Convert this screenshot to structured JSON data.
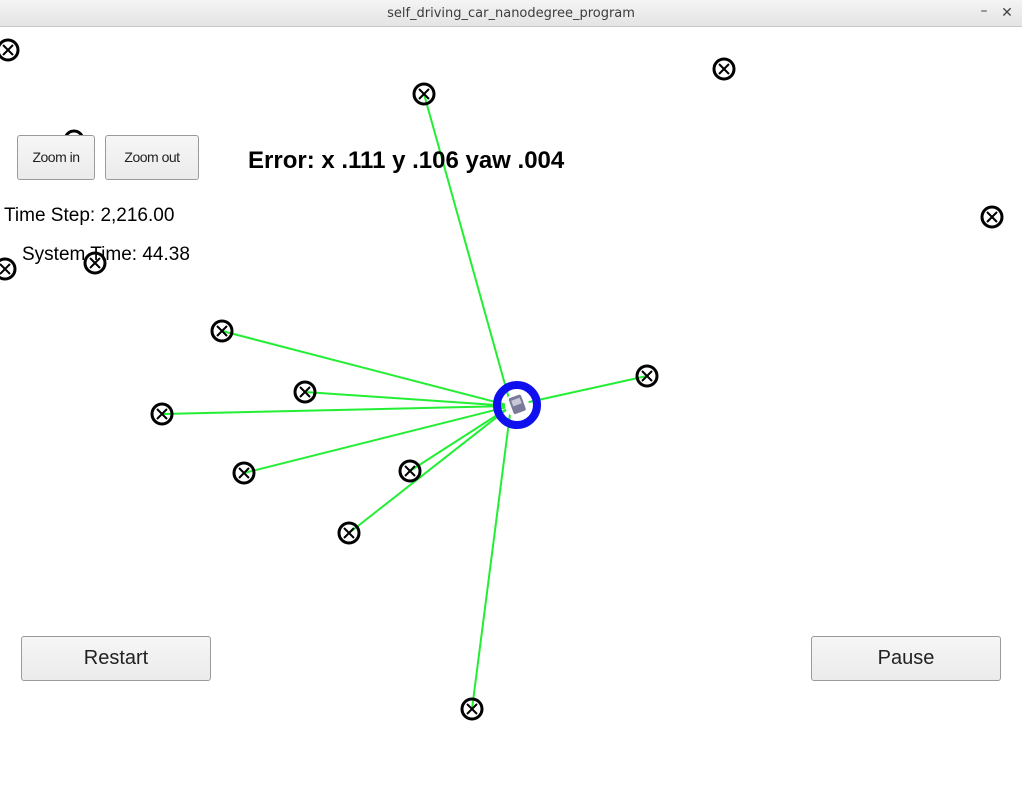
{
  "window": {
    "title": "self_driving_car_nanodegree_program",
    "minimize_symbol": "–",
    "close_symbol": "✕"
  },
  "controls": {
    "zoom_in_label": "Zoom in",
    "zoom_out_label": "Zoom out",
    "restart_label": "Restart",
    "pause_label": "Pause"
  },
  "status": {
    "error": "Error: x .111 y .106 yaw .004",
    "time_step": "Time Step: 2,216.00",
    "system_time": "System Time: 44.38"
  },
  "colors": {
    "observation_line": "#22ee33",
    "vehicle_ring": "#1010ee",
    "landmark": "#000000"
  }
}
